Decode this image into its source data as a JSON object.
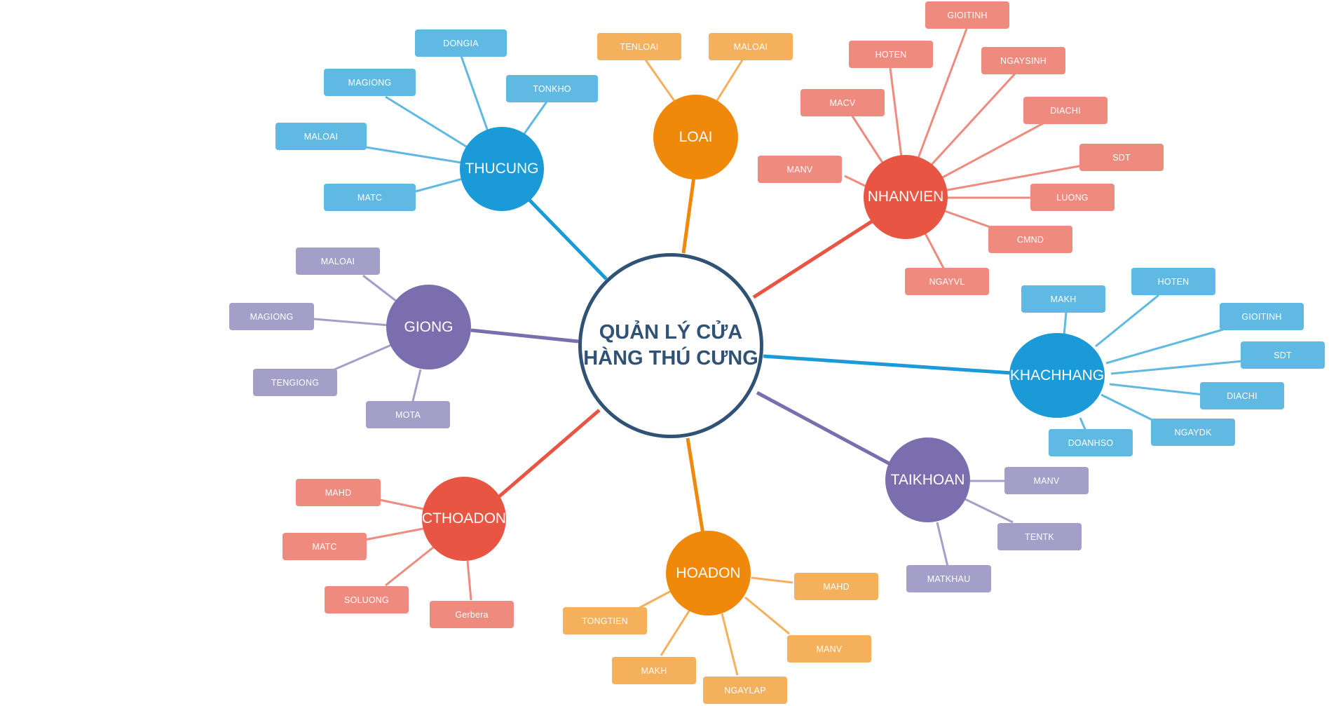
{
  "center": {
    "line1": "QUẢN LÝ CỬA",
    "line2": "HÀNG THÚ CƯNG",
    "color": "#2f5275"
  },
  "branches": [
    {
      "id": "thucung",
      "label": "THUCUNG",
      "color": "#1a9ad6",
      "leaf_color": "#5fb9e2",
      "leaves": [
        "DONGIA",
        "MAGIONG",
        "TONKHO",
        "MALOAI",
        "MATC"
      ]
    },
    {
      "id": "loai",
      "label": "LOAI",
      "color": "#f0880a",
      "leaf_color": "#f5b05c",
      "leaves": [
        "TENLOAI",
        "MALOAI"
      ]
    },
    {
      "id": "nhanvien",
      "label": "NHANVIEN",
      "color": "#e85543",
      "leaf_color": "#ef8b7e",
      "leaves": [
        "GIOITINH",
        "HOTEN",
        "NGAYSINH",
        "MACV",
        "DIACHI",
        "MANV",
        "SDT",
        "LUONG",
        "CMND",
        "NGAYVL"
      ]
    },
    {
      "id": "giong",
      "label": "GIONG",
      "color": "#7a6eae",
      "leaf_color": "#a49fc8",
      "leaves": [
        "MALOAI",
        "MAGIONG",
        "TENGIONG",
        "MOTA"
      ]
    },
    {
      "id": "khachhang",
      "label": "KHACHHANG",
      "color": "#1a9ad6",
      "leaf_color": "#5fb9e2",
      "leaves": [
        "MAKH",
        "HOTEN",
        "GIOITINH",
        "SDT",
        "DIACHI",
        "NGAYDK",
        "DOANHSO"
      ]
    },
    {
      "id": "taikhoan",
      "label": "TAIKHOAN",
      "color": "#7a6eae",
      "leaf_color": "#a49fc8",
      "leaves": [
        "MANV",
        "TENTK",
        "MATKHAU"
      ]
    },
    {
      "id": "cthoadon",
      "label": "CTHOADON",
      "color": "#e85543",
      "leaf_color": "#ef8b7e",
      "leaves": [
        "MAHD",
        "MATC",
        "SOLUONG",
        "Gerbera"
      ]
    },
    {
      "id": "hoadon",
      "label": "HOADON",
      "color": "#f0880a",
      "leaf_color": "#f5b05c",
      "leaves": [
        "MAHD",
        "TONGTIEN",
        "MANV",
        "MAKH",
        "NGAYLAP"
      ]
    }
  ]
}
